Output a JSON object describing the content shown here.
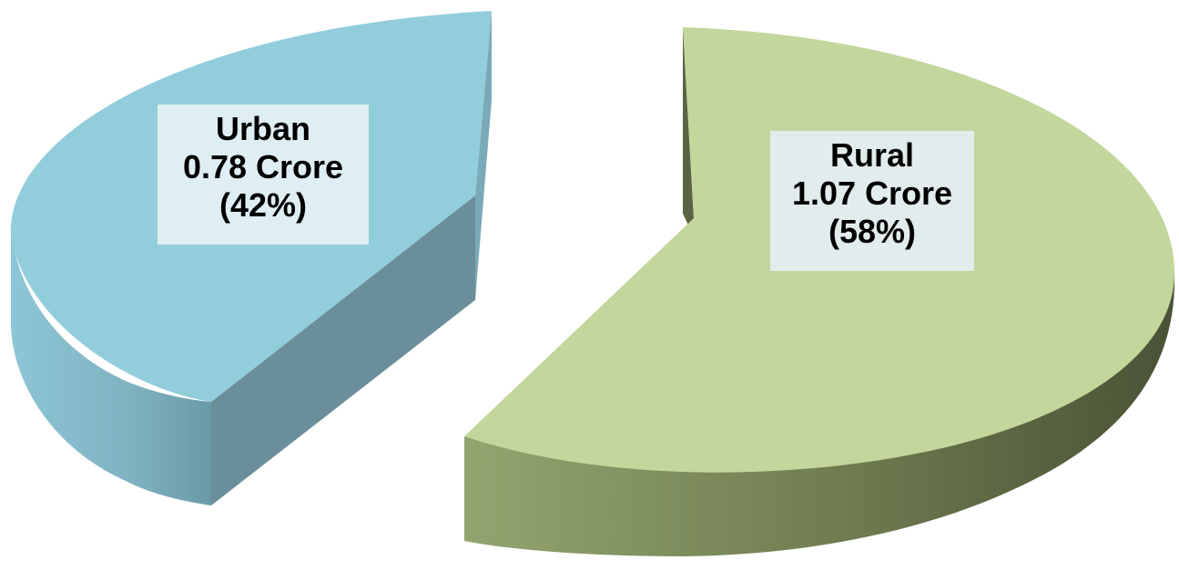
{
  "chart_data": {
    "type": "pie",
    "style": "3d-exploded",
    "unit": "Crore",
    "slices": [
      {
        "name": "Urban",
        "value": 0.78,
        "percent": 42,
        "value_label": "0.78 Crore",
        "percent_label": "(42%)",
        "top_color": "#92cddc",
        "side_color": "#6a9aa8",
        "inner_color": "#6b8f9b"
      },
      {
        "name": "Rural",
        "value": 1.07,
        "percent": 58,
        "value_label": "1.07 Crore",
        "percent_label": "(58%)",
        "top_color": "#c3d69b",
        "side_color": "#6e7a4f",
        "inner_color": "#5c6646"
      }
    ],
    "legend": "none",
    "title": ""
  }
}
